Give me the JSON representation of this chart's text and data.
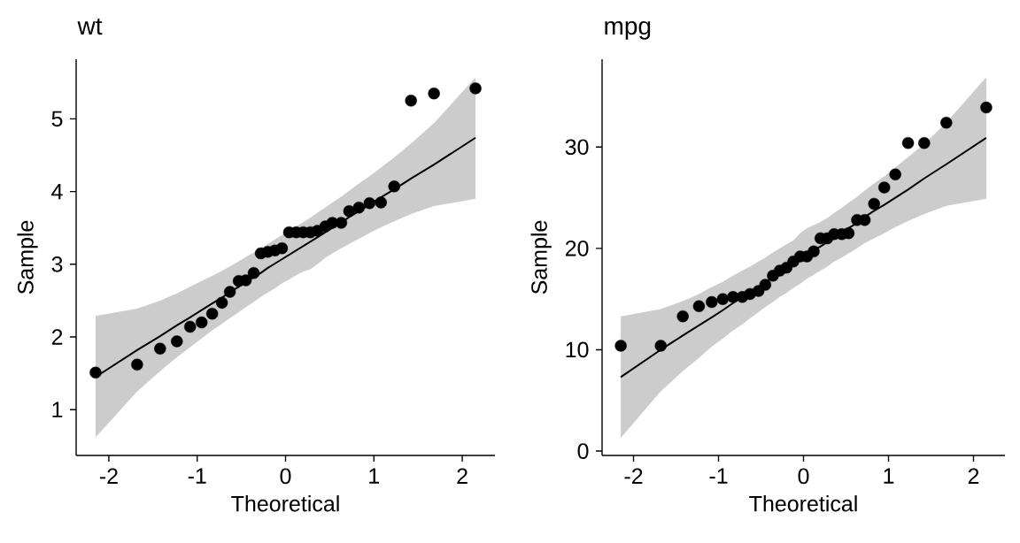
{
  "chart_data": [
    {
      "type": "scatter",
      "title": "wt",
      "xlabel": "Theoretical",
      "ylabel": "Sample",
      "xlim": [
        -2.37,
        2.37
      ],
      "xticks": [
        -2,
        -1,
        0,
        1,
        2
      ],
      "ylim": [
        0.37,
        5.82
      ],
      "yticks": [
        1,
        2,
        3,
        4,
        5
      ],
      "marker": "circle",
      "series": [
        {
          "type": "scatter",
          "color": "#000000",
          "x": [
            -2.15,
            -1.68,
            -1.42,
            -1.23,
            -1.08,
            -0.95,
            -0.83,
            -0.72,
            -0.63,
            -0.53,
            -0.45,
            -0.36,
            -0.28,
            -0.2,
            -0.12,
            -0.04,
            0.04,
            0.12,
            0.2,
            0.28,
            0.36,
            0.45,
            0.53,
            0.63,
            0.72,
            0.83,
            0.95,
            1.08,
            1.23,
            1.42,
            1.68,
            2.15
          ],
          "values": [
            1.51,
            1.62,
            1.84,
            1.94,
            2.14,
            2.2,
            2.32,
            2.47,
            2.62,
            2.77,
            2.78,
            2.88,
            3.15,
            3.17,
            3.19,
            3.22,
            3.44,
            3.44,
            3.44,
            3.44,
            3.46,
            3.52,
            3.57,
            3.57,
            3.73,
            3.78,
            3.84,
            3.85,
            4.07,
            5.25,
            5.35,
            5.42
          ]
        },
        {
          "type": "line",
          "color": "#000000",
          "marker": "none",
          "line_style": "solid",
          "x": [
            -2.15,
            -1.68,
            -1.42,
            -1.23,
            -1.08,
            -0.95,
            -0.83,
            -0.72,
            -0.63,
            -0.53,
            -0.45,
            -0.36,
            -0.28,
            -0.2,
            -0.12,
            -0.04,
            0.04,
            0.12,
            0.2,
            0.28,
            0.36,
            0.45,
            0.53,
            0.63,
            0.72,
            0.83,
            0.95,
            1.08,
            1.23,
            1.42,
            1.68,
            2.15
          ],
          "values": [
            1.45,
            1.82,
            2.01,
            2.16,
            2.27,
            2.37,
            2.46,
            2.54,
            2.62,
            2.69,
            2.76,
            2.82,
            2.88,
            2.95,
            3.01,
            3.07,
            3.13,
            3.19,
            3.25,
            3.31,
            3.37,
            3.44,
            3.5,
            3.57,
            3.65,
            3.73,
            3.82,
            3.92,
            4.03,
            4.18,
            4.37,
            4.74
          ],
          "lower": [
            0.62,
            1.25,
            1.53,
            1.72,
            1.86,
            1.98,
            2.09,
            2.18,
            2.26,
            2.34,
            2.41,
            2.48,
            2.55,
            2.61,
            2.67,
            2.74,
            2.79,
            2.85,
            2.9,
            2.93,
            3.0,
            3.09,
            3.15,
            3.22,
            3.28,
            3.35,
            3.43,
            3.51,
            3.59,
            3.69,
            3.8,
            3.9
          ],
          "upper": [
            2.29,
            2.39,
            2.5,
            2.6,
            2.69,
            2.77,
            2.84,
            2.91,
            2.97,
            3.04,
            3.1,
            3.16,
            3.22,
            3.28,
            3.34,
            3.4,
            3.46,
            3.52,
            3.58,
            3.64,
            3.71,
            3.78,
            3.85,
            3.93,
            4.01,
            4.11,
            4.21,
            4.33,
            4.47,
            4.66,
            4.94,
            5.57
          ]
        }
      ]
    },
    {
      "type": "scatter",
      "title": "mpg",
      "xlabel": "Theoretical",
      "ylabel": "Sample",
      "xlim": [
        -2.37,
        2.37
      ],
      "xticks": [
        -2,
        -1,
        0,
        1,
        2
      ],
      "ylim": [
        -0.43,
        38.66
      ],
      "yticks": [
        0,
        10,
        20,
        30
      ],
      "marker": "circle",
      "series": [
        {
          "type": "scatter",
          "color": "#000000",
          "x": [
            -2.15,
            -1.68,
            -1.42,
            -1.23,
            -1.08,
            -0.95,
            -0.83,
            -0.72,
            -0.63,
            -0.53,
            -0.45,
            -0.36,
            -0.28,
            -0.2,
            -0.12,
            -0.04,
            0.04,
            0.12,
            0.2,
            0.28,
            0.36,
            0.45,
            0.53,
            0.63,
            0.72,
            0.83,
            0.95,
            1.08,
            1.23,
            1.42,
            1.68,
            2.15
          ],
          "values": [
            10.4,
            10.4,
            13.3,
            14.3,
            14.7,
            15.0,
            15.2,
            15.2,
            15.5,
            15.8,
            16.4,
            17.3,
            17.8,
            18.1,
            18.7,
            19.2,
            19.2,
            19.7,
            21.0,
            21.0,
            21.4,
            21.4,
            21.5,
            22.8,
            22.8,
            24.4,
            26.0,
            27.3,
            30.4,
            30.4,
            32.4,
            33.9
          ]
        },
        {
          "type": "line",
          "color": "#000000",
          "marker": "none",
          "line_style": "solid",
          "x": [
            -2.15,
            -1.68,
            -1.42,
            -1.23,
            -1.08,
            -0.95,
            -0.83,
            -0.72,
            -0.63,
            -0.53,
            -0.45,
            -0.36,
            -0.28,
            -0.2,
            -0.12,
            -0.04,
            0.04,
            0.12,
            0.2,
            0.28,
            0.36,
            0.45,
            0.53,
            0.63,
            0.72,
            0.83,
            0.95,
            1.08,
            1.23,
            1.42,
            1.68,
            2.15
          ],
          "values": [
            7.3,
            10.0,
            11.4,
            12.4,
            13.2,
            13.9,
            14.6,
            15.2,
            15.7,
            16.2,
            16.7,
            17.1,
            17.6,
            18.0,
            18.5,
            18.9,
            19.3,
            19.8,
            20.2,
            20.6,
            21.1,
            21.5,
            22.0,
            22.5,
            23.1,
            23.7,
            24.3,
            25.0,
            25.8,
            26.9,
            28.3,
            30.9
          ],
          "lower": [
            1.3,
            5.9,
            7.9,
            9.2,
            10.3,
            11.1,
            11.9,
            12.5,
            13.1,
            13.7,
            14.2,
            14.7,
            15.2,
            15.6,
            16.1,
            16.5,
            17.0,
            17.4,
            17.8,
            18.2,
            18.7,
            19.1,
            19.5,
            20.0,
            20.5,
            21.0,
            21.5,
            22.1,
            22.7,
            23.4,
            24.2,
            24.9
          ],
          "upper": [
            13.3,
            14.0,
            14.8,
            15.5,
            16.2,
            16.7,
            17.3,
            17.8,
            18.2,
            18.7,
            19.1,
            19.6,
            20.0,
            20.4,
            20.8,
            21.5,
            22.0,
            22.3,
            22.6,
            23.0,
            23.5,
            24.0,
            24.5,
            25.1,
            25.7,
            26.4,
            27.1,
            28.0,
            29.0,
            30.3,
            32.4,
            36.9
          ]
        }
      ]
    }
  ]
}
